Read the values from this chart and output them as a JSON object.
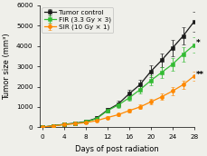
{
  "x": [
    0,
    2,
    4,
    6,
    8,
    10,
    12,
    14,
    16,
    18,
    20,
    22,
    24,
    26,
    28
  ],
  "tumor_control": [
    10,
    80,
    150,
    200,
    280,
    450,
    850,
    1150,
    1650,
    2100,
    2750,
    3300,
    3900,
    4500,
    5200
  ],
  "tumor_control_err": [
    5,
    30,
    40,
    50,
    60,
    80,
    120,
    150,
    200,
    230,
    280,
    330,
    380,
    430,
    480
  ],
  "fir": [
    10,
    75,
    140,
    190,
    270,
    430,
    820,
    1100,
    1450,
    1850,
    2300,
    2700,
    3100,
    3600,
    4050
  ],
  "fir_err": [
    5,
    25,
    35,
    45,
    55,
    70,
    100,
    130,
    160,
    190,
    240,
    280,
    310,
    350,
    380
  ],
  "sir": [
    10,
    70,
    130,
    175,
    230,
    330,
    480,
    620,
    820,
    1000,
    1250,
    1500,
    1780,
    2100,
    2520
  ],
  "sir_err": [
    5,
    20,
    28,
    33,
    42,
    52,
    65,
    78,
    95,
    110,
    140,
    165,
    185,
    210,
    240
  ],
  "tumor_color": "#1a1a1a",
  "fir_color": "#33bb33",
  "sir_color": "#ff8800",
  "xlabel": "Days of post radiation",
  "ylabel": "Tumor size (mm³)",
  "ylim": [
    0,
    6000
  ],
  "xlim": [
    -0.5,
    28
  ],
  "yticks": [
    0,
    1000,
    2000,
    3000,
    4000,
    5000,
    6000
  ],
  "xticks": [
    0,
    4,
    8,
    12,
    16,
    20,
    24,
    28
  ],
  "legend_labels": [
    "Tumor control",
    "FIR (3.3 Gy × 3)",
    "SIR (10 Gy × 1)"
  ],
  "star1_x": 28.3,
  "star1_y": 4150,
  "star2_x": 28.3,
  "star2_y": 2580,
  "star1_text": "*",
  "star2_text": "**",
  "background_color": "#efefea",
  "fontsize_label": 6.0,
  "fontsize_tick": 5.2,
  "fontsize_legend": 5.2,
  "linewidth": 0.9,
  "markersize": 3.0,
  "capsize": 1.2,
  "elinewidth": 0.6
}
